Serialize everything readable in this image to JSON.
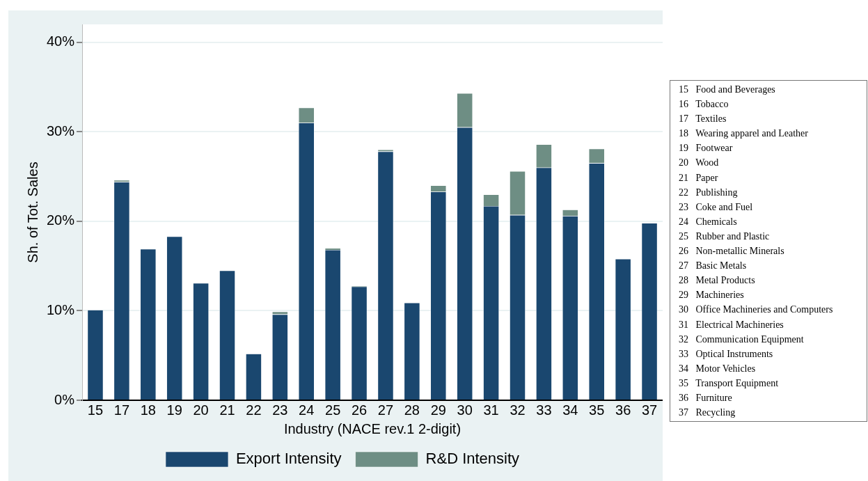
{
  "chart_data": {
    "type": "bar",
    "stacked": true,
    "xlabel": "Industry (NACE rev.1 2-digit)",
    "ylabel": "Sh. of Tot. Sales",
    "categories": [
      "15",
      "17",
      "18",
      "19",
      "20",
      "21",
      "22",
      "23",
      "24",
      "25",
      "26",
      "27",
      "28",
      "29",
      "30",
      "31",
      "32",
      "33",
      "34",
      "35",
      "36",
      "37"
    ],
    "series": [
      {
        "name": "Export Intensity",
        "color": "#1a476f",
        "values": [
          10.1,
          24.4,
          16.9,
          18.3,
          13.1,
          14.5,
          5.2,
          9.6,
          31.0,
          16.8,
          12.7,
          27.8,
          10.9,
          23.3,
          30.5,
          21.7,
          20.7,
          26.0,
          20.6,
          26.5,
          15.8,
          19.8
        ]
      },
      {
        "name": "R&D Intensity",
        "color": "#6e8e84",
        "values": [
          0,
          0.2,
          0,
          0,
          0,
          0,
          0,
          0.3,
          1.7,
          0.2,
          0.1,
          0.2,
          0,
          0.7,
          3.8,
          1.3,
          4.9,
          2.6,
          0.7,
          1.6,
          0,
          0
        ]
      }
    ],
    "ylim": [
      0,
      42
    ],
    "yticks": [
      {
        "value": 0,
        "label": "0%"
      },
      {
        "value": 10,
        "label": "10%"
      },
      {
        "value": 20,
        "label": "20%"
      },
      {
        "value": 30,
        "label": "30%"
      },
      {
        "value": 40,
        "label": "40%"
      }
    ],
    "grid": "y",
    "legend": "bottom",
    "annotations": [
      "15   Food and Beverages",
      "16   Tobacco",
      "17   Textiles",
      "18   Wearing apparel and Leather",
      "19   Footwear",
      "20   Wood",
      "21   Paper",
      "22   Publishing",
      "23   Coke and Fuel",
      "24   Chemicals",
      "25   Rubber and Plastic",
      "26   Non-metallic Minerals",
      "27   Basic Metals",
      "28   Metal Products",
      "29   Machineries",
      "30   Office Machineries and Computers",
      "31   Electrical Machineries",
      "32   Communication Equipment",
      "33   Optical Instruments",
      "34   Motor Vehicles",
      "35   Transport Equipment",
      "36   Furniture",
      "37   Recycling"
    ]
  }
}
